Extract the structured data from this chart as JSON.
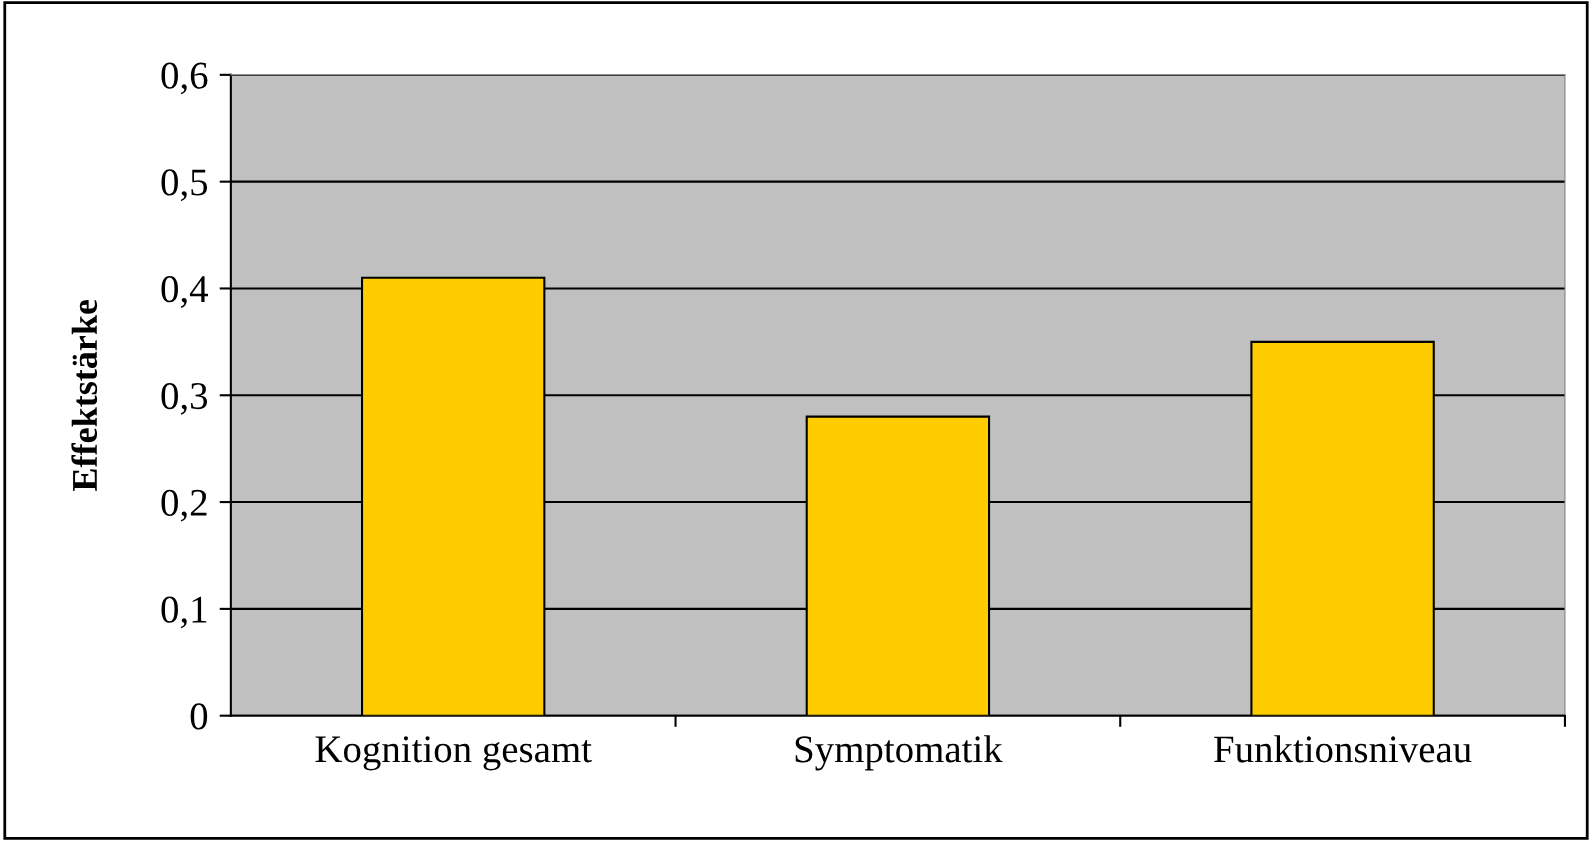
{
  "chart_data": {
    "type": "bar",
    "ylabel": "Effektstärke",
    "categories": [
      "Kognition gesamt",
      "Symptomatik",
      "Funktionsniveau"
    ],
    "values": [
      0.41,
      0.28,
      0.35
    ],
    "color": "#ffcc00",
    "ylim": [
      0,
      0.6
    ],
    "yticks": [
      {
        "value": 0,
        "label": "0"
      },
      {
        "value": 0.1,
        "label": "0,1"
      },
      {
        "value": 0.2,
        "label": "0,2"
      },
      {
        "value": 0.3,
        "label": "0,3"
      },
      {
        "value": 0.4,
        "label": "0,4"
      },
      {
        "value": 0.5,
        "label": "0,5"
      },
      {
        "value": 0.6,
        "label": "0,6"
      }
    ],
    "grid": "y"
  }
}
